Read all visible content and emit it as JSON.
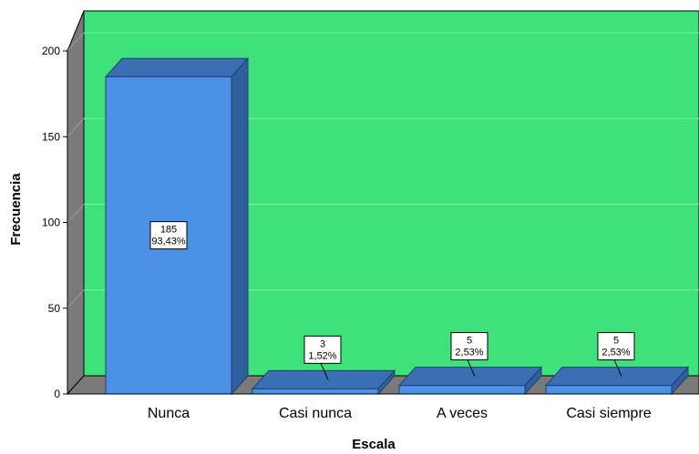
{
  "chart_data": {
    "type": "bar",
    "categories": [
      "Nunca",
      "Casi nunca",
      "A veces",
      "Casi siempre"
    ],
    "values": [
      185,
      3,
      5,
      5
    ],
    "percent_labels": [
      "93,43%",
      "1,52%",
      "2,53%",
      "2,53%"
    ],
    "xlabel": "Escala",
    "ylabel": "Frecuencia",
    "ylim": [
      0,
      200
    ],
    "yticks": [
      0,
      50,
      100,
      150,
      200
    ],
    "grid": true,
    "three_d": true,
    "colors": {
      "plot_background": "#3fe27a",
      "plot_floor": "#7a7a7a",
      "bar_front": "#4b92e6",
      "bar_side": "#2e5f9e",
      "bar_top": "#3a6fb4",
      "gridline": "#7ff0a6"
    }
  }
}
